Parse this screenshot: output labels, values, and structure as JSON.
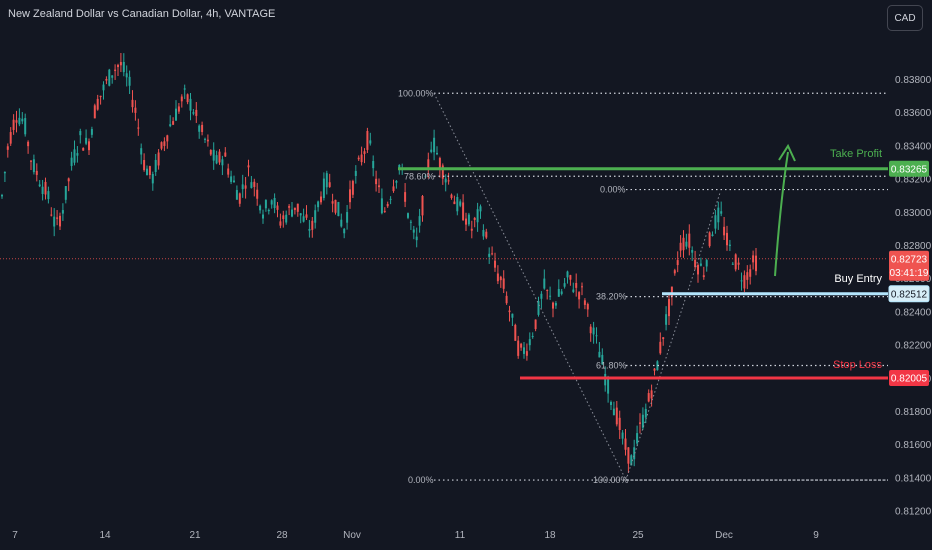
{
  "header": {
    "title": "New Zealand Dollar vs Canadian Dollar, 4h, VANTAGE",
    "currency": "CAD"
  },
  "colors": {
    "up": "#26a69a",
    "down": "#ef5350",
    "take_profit": "#4caf50",
    "stop_loss": "#f23645",
    "entry": "#b3e5fc",
    "background": "#131722"
  },
  "chart_data": {
    "type": "candlestick",
    "title": "New Zealand Dollar vs Canadian Dollar, 4h, VANTAGE",
    "ylim": [
      0.8116,
      0.8396
    ],
    "y_ticks": [
      "0.83800",
      "0.83600",
      "0.83400",
      "0.83200",
      "0.83000",
      "0.82800",
      "0.82600",
      "0.82400",
      "0.82200",
      "0.82000",
      "0.81800",
      "0.81600",
      "0.81400",
      "0.81200"
    ],
    "x_ticks": [
      "7",
      "14",
      "21",
      "28",
      "Nov",
      "11",
      "18",
      "25",
      "Dec",
      "9"
    ],
    "price_path": [
      [
        0,
        0.83
      ],
      [
        8,
        0.834
      ],
      [
        16,
        0.836
      ],
      [
        24,
        0.8355
      ],
      [
        32,
        0.833
      ],
      [
        40,
        0.832
      ],
      [
        48,
        0.831
      ],
      [
        56,
        0.829
      ],
      [
        64,
        0.8305
      ],
      [
        72,
        0.833
      ],
      [
        80,
        0.8345
      ],
      [
        88,
        0.834
      ],
      [
        96,
        0.8365
      ],
      [
        104,
        0.8375
      ],
      [
        112,
        0.8385
      ],
      [
        120,
        0.839
      ],
      [
        128,
        0.838
      ],
      [
        136,
        0.836
      ],
      [
        144,
        0.833
      ],
      [
        152,
        0.832
      ],
      [
        160,
        0.8335
      ],
      [
        168,
        0.835
      ],
      [
        176,
        0.836
      ],
      [
        184,
        0.837
      ],
      [
        192,
        0.8365
      ],
      [
        200,
        0.835
      ],
      [
        208,
        0.834
      ],
      [
        216,
        0.833
      ],
      [
        224,
        0.8335
      ],
      [
        232,
        0.832
      ],
      [
        240,
        0.831
      ],
      [
        248,
        0.8325
      ],
      [
        256,
        0.8315
      ],
      [
        264,
        0.83
      ],
      [
        272,
        0.831
      ],
      [
        280,
        0.8295
      ],
      [
        288,
        0.83
      ],
      [
        296,
        0.8305
      ],
      [
        304,
        0.8295
      ],
      [
        312,
        0.829
      ],
      [
        320,
        0.831
      ],
      [
        328,
        0.832
      ],
      [
        336,
        0.8305
      ],
      [
        344,
        0.829
      ],
      [
        352,
        0.8315
      ],
      [
        360,
        0.833
      ],
      [
        368,
        0.8345
      ],
      [
        376,
        0.832
      ],
      [
        384,
        0.83
      ],
      [
        392,
        0.8315
      ],
      [
        400,
        0.833
      ],
      [
        408,
        0.83
      ],
      [
        416,
        0.828
      ],
      [
        424,
        0.831
      ],
      [
        432,
        0.8345
      ],
      [
        440,
        0.833
      ],
      [
        448,
        0.832
      ],
      [
        456,
        0.8305
      ],
      [
        464,
        0.83
      ],
      [
        472,
        0.829
      ],
      [
        480,
        0.83
      ],
      [
        488,
        0.828
      ],
      [
        496,
        0.8265
      ],
      [
        504,
        0.8255
      ],
      [
        512,
        0.8235
      ],
      [
        520,
        0.8215
      ],
      [
        528,
        0.822
      ],
      [
        536,
        0.8235
      ],
      [
        544,
        0.8255
      ],
      [
        552,
        0.8245
      ],
      [
        560,
        0.825
      ],
      [
        568,
        0.826
      ],
      [
        576,
        0.8255
      ],
      [
        584,
        0.825
      ],
      [
        592,
        0.823
      ],
      [
        600,
        0.8215
      ],
      [
        608,
        0.8195
      ],
      [
        616,
        0.818
      ],
      [
        624,
        0.816
      ],
      [
        632,
        0.815
      ],
      [
        640,
        0.817
      ],
      [
        648,
        0.8185
      ],
      [
        656,
        0.8205
      ],
      [
        664,
        0.823
      ],
      [
        672,
        0.825
      ],
      [
        680,
        0.828
      ],
      [
        688,
        0.8285
      ],
      [
        696,
        0.827
      ],
      [
        704,
        0.8265
      ],
      [
        712,
        0.829
      ],
      [
        720,
        0.83
      ],
      [
        728,
        0.828
      ],
      [
        736,
        0.827
      ],
      [
        744,
        0.826
      ],
      [
        752,
        0.8268
      ],
      [
        758,
        0.8272
      ]
    ],
    "levels": {
      "take_profit": {
        "label": "Take Profit",
        "value": "0.83265"
      },
      "buy_entry": {
        "label": "Buy Entry",
        "value": "0.82512"
      },
      "stop_loss": {
        "label": "Stop Loss",
        "value": "0.82005"
      },
      "current": {
        "value": "0.82723",
        "countdown": "03:41:19"
      }
    },
    "fibonacci_1": [
      {
        "label": "100.00%"
      },
      {
        "label": "78.60%"
      },
      {
        "label": "0.00%"
      }
    ],
    "fibonacci_2": [
      {
        "label": "0.00%"
      },
      {
        "label": "38.20%"
      },
      {
        "label": "61.80%"
      },
      {
        "label": "100.00%"
      }
    ]
  }
}
